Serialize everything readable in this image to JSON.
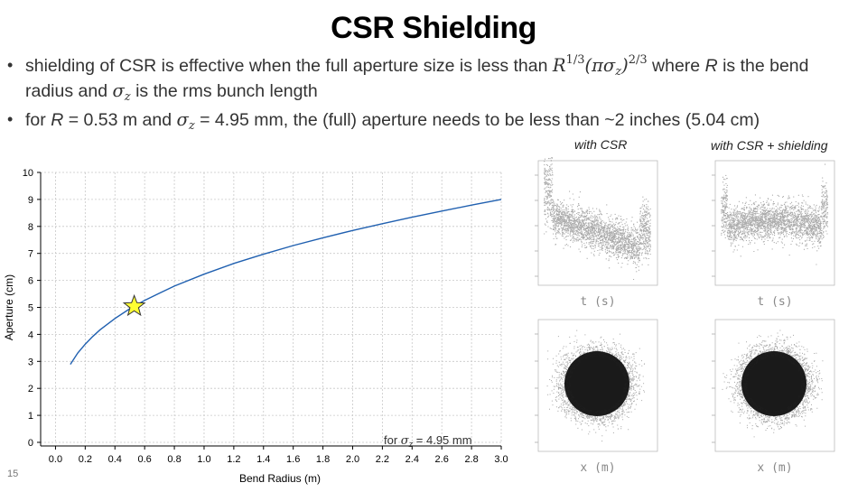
{
  "slide": {
    "title": "CSR Shielding",
    "page_number": "15",
    "bullets": [
      {
        "prefix": "shielding of CSR is effective when the full aperture size is less than ",
        "formula_R": "R",
        "formula_exp1": "1/3",
        "formula_open": "(πσ",
        "formula_sub": "z",
        "formula_close": ")",
        "formula_exp2": "2/3",
        "suffix": " where ",
        "R": "R",
        "mid": " is the bend radius and ",
        "sigma": "σ",
        "sigma_sub": "z",
        "end": " is the rms bunch length"
      },
      {
        "p1": "for ",
        "R": "R",
        "p2": " = 0.53 m and ",
        "sigma": "σ",
        "sigma_sub": "z",
        "p3": " = 4.95 mm, the (full) aperture needs to be less than ~2 inches (5.04 cm)"
      }
    ],
    "panel_labels": {
      "with_csr": "with CSR",
      "with_csr_shielding": "with CSR + shielding"
    },
    "scatter_axis_labels": {
      "time": "t  (s)",
      "position": "x  (m)"
    }
  },
  "chart_data": {
    "type": "line",
    "title": "",
    "xlabel": "Bend Radius (m)",
    "ylabel": "Aperture (cm)",
    "xlim": [
      -0.1,
      3.0
    ],
    "ylim": [
      0,
      10
    ],
    "xticks": [
      0.0,
      0.2,
      0.4,
      0.6,
      0.8,
      1.0,
      1.2,
      1.4,
      1.6,
      1.8,
      2.0,
      2.2,
      2.4,
      2.6,
      2.8,
      3.0
    ],
    "xtick_labels": [
      "0.0",
      "0.2",
      "0.4",
      "0.6",
      "0.8",
      "1.0",
      "1.2",
      "1.4",
      "1.6",
      "1.8",
      "2.0",
      "2.2",
      "2.4",
      "2.6",
      "2.8",
      "3.0"
    ],
    "yticks": [
      0,
      1,
      2,
      3,
      4,
      5,
      6,
      7,
      8,
      9,
      10
    ],
    "grid": true,
    "series": [
      {
        "name": "aperture",
        "color": "#2060b0",
        "x": [
          0.1,
          0.15,
          0.2,
          0.25,
          0.3,
          0.4,
          0.5,
          0.6,
          0.7,
          0.8,
          1.0,
          1.2,
          1.4,
          1.6,
          1.8,
          2.0,
          2.2,
          2.4,
          2.6,
          2.8,
          3.0
        ],
        "y": [
          2.89,
          3.31,
          3.64,
          3.92,
          4.17,
          4.59,
          4.95,
          5.26,
          5.53,
          5.79,
          6.23,
          6.63,
          6.97,
          7.29,
          7.58,
          7.85,
          8.1,
          8.34,
          8.57,
          8.79,
          9.0
        ]
      }
    ],
    "marker": {
      "x": 0.53,
      "y": 5.04,
      "shape": "star",
      "color": "#ffff33"
    },
    "annotation": {
      "prefix": "for ",
      "sigma": "σ",
      "sub": "z",
      "suffix": " = 4.95 mm"
    }
  }
}
